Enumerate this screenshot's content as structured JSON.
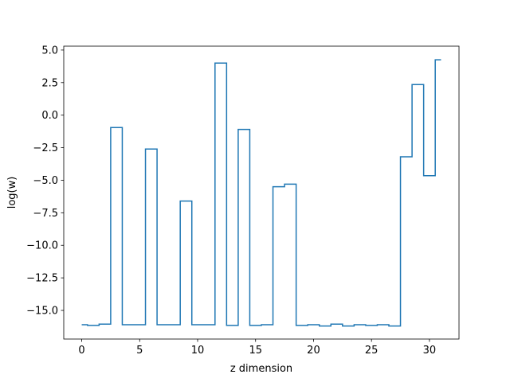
{
  "chart_data": {
    "type": "line",
    "drawstyle": "steps",
    "title": "",
    "xlabel": "z dimension",
    "ylabel": "log(w)",
    "xlim": [
      -1.55,
      32.55
    ],
    "ylim": [
      -17.2,
      5.3
    ],
    "xticks": [
      0,
      5,
      10,
      15,
      20,
      25,
      30
    ],
    "xtick_labels": [
      "0",
      "5",
      "10",
      "15",
      "20",
      "25",
      "30"
    ],
    "yticks": [
      -15.0,
      -12.5,
      -10.0,
      -7.5,
      -5.0,
      -2.5,
      0.0,
      2.5,
      5.0
    ],
    "ytick_labels": [
      "−15.0",
      "−12.5",
      "−10.0",
      "−7.5",
      "−5.0",
      "−2.5",
      "0.0",
      "2.5",
      "5.0"
    ],
    "grid": false,
    "legend": false,
    "series": [
      {
        "color": "#1f77b4",
        "x": [
          0,
          1,
          2,
          3,
          4,
          5,
          6,
          7,
          8,
          9,
          10,
          11,
          12,
          13,
          14,
          15,
          16,
          17,
          18,
          19,
          20,
          21,
          22,
          23,
          24,
          25,
          26,
          27,
          28,
          29,
          30,
          31
        ],
        "values": [
          -16.1,
          -16.15,
          -16.05,
          -0.95,
          -16.1,
          -16.1,
          -2.6,
          -16.1,
          -16.1,
          -6.6,
          -16.1,
          -16.1,
          4.0,
          -16.15,
          -1.1,
          -16.15,
          -16.1,
          -5.5,
          -5.3,
          -16.15,
          -16.1,
          -16.2,
          -16.05,
          -16.2,
          -16.1,
          -16.15,
          -16.1,
          -16.2,
          -3.2,
          2.35,
          -4.65,
          4.25
        ]
      }
    ]
  }
}
